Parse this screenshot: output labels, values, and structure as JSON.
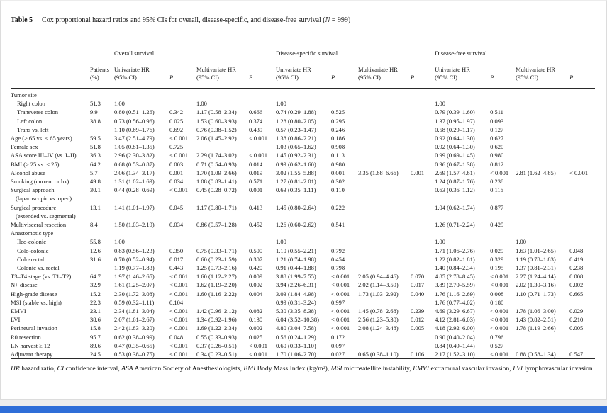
{
  "caption": {
    "label": "Table 5",
    "segments": [
      {
        "t": "Cox proportional hazard ratios and 95% CIs for overall, disease-specific, and disease-free survival (",
        "i": false
      },
      {
        "t": "N",
        "i": true
      },
      {
        "t": " = 999)",
        "i": false
      }
    ]
  },
  "table": {
    "header": {
      "patients": [
        "Patients",
        "(%)"
      ],
      "groups": [
        {
          "name": "Overall survival"
        },
        {
          "name": "Disease-specific survival"
        },
        {
          "name": "Disease-free survival"
        }
      ],
      "univariate": [
        "Univariate HR",
        "(95% CI)"
      ],
      "multivariate": [
        "Multivariate HR",
        "(95% CI)"
      ],
      "p": "P"
    },
    "rows": [
      {
        "label": "Tumor site",
        "indent": 0
      },
      {
        "label": "Right colon",
        "indent": 1,
        "cells": [
          "51.3",
          "1.00",
          "",
          "1.00",
          "",
          "1.00",
          "",
          "",
          "",
          "1.00",
          "",
          "",
          ""
        ]
      },
      {
        "label": "Transverse colon",
        "indent": 1,
        "cells": [
          "9.9",
          "0.80 (0.51–1.26)",
          "0.342",
          "1.17 (0.58–2.34)",
          "0.666",
          "0.74 (0.29–1.88)",
          "0.525",
          "",
          "",
          "0.79 (0.39–1.60)",
          "0.511",
          "",
          ""
        ]
      },
      {
        "label": "Left colon",
        "indent": 1,
        "cells": [
          "38.8",
          "0.73 (0.56–0.96)",
          "0.025",
          "1.53 (0.60–3.93)",
          "0.374",
          "1.28 (0.80–2.05)",
          "0.295",
          "",
          "",
          "1.37 (0.95–1.97)",
          "0.093",
          "",
          ""
        ]
      },
      {
        "label": "Trans vs. left",
        "indent": 1,
        "cells": [
          "",
          "1.10 (0.69–1.76)",
          "0.692",
          "0.76 (0.38–1.52)",
          "0.439",
          "0.57 (0.23–1.47)",
          "0.246",
          "",
          "",
          "0.58 (0.29–1.17)",
          "0.127",
          "",
          ""
        ]
      },
      {
        "label": "Age (≥ 65 vs. < 65 years)",
        "indent": 0,
        "cells": [
          "59.5",
          "3.47 (2.51–4.79)",
          "< 0.001",
          "2.06 (1.45–2.92)",
          "< 0.001",
          "1.38 (0.86–2.21)",
          "0.186",
          "",
          "",
          "0.92 (0.64–1.30)",
          "0.627",
          "",
          ""
        ]
      },
      {
        "label": "Female sex",
        "indent": 0,
        "cells": [
          "51.8",
          "1.05 (0.81–1.35)",
          "0.725",
          "",
          "",
          "1.03 (0.65–1.62)",
          "0.908",
          "",
          "",
          "0.92 (0.64–1.30)",
          "0.620",
          "",
          ""
        ]
      },
      {
        "label": "ASA score III–IV (vs. I–II)",
        "indent": 0,
        "cells": [
          "36.3",
          "2.96 (2.30–3.82)",
          "< 0.001",
          "2.29 (1.74–3.02)",
          "< 0.001",
          "1.45 (0.92–2.31)",
          "0.113",
          "",
          "",
          "0.99 (0.69–1.45)",
          "0.980",
          "",
          ""
        ]
      },
      {
        "label": "BMI (≥ 25 vs. < 25)",
        "indent": 0,
        "cells": [
          "64.2",
          "0.68 (0.53–0.87)",
          "0.003",
          "0.71 (0.54–0.93)",
          "0.014",
          "0.99 (0.62–1.60)",
          "0.980",
          "",
          "",
          "0.96 (0.67–1.38)",
          "0.812",
          "",
          ""
        ]
      },
      {
        "label": "Alcohol abuse",
        "indent": 0,
        "cells": [
          "5.7",
          "2.06 (1.34–3.17)",
          "0.001",
          "1.70 (1.09–2.66)",
          "0.019",
          "3.02 (1.55–5.88)",
          "0.001",
          "3.35 (1.68–6.66)",
          "0.001",
          "2.69 (1.57–4.61)",
          "< 0.001",
          "2.81 (1.62–4.85)",
          "< 0.001"
        ]
      },
      {
        "label": "Smoking (current or hx)",
        "indent": 0,
        "cells": [
          "49.8",
          "1.31 (1.02–1.69)",
          "0.034",
          "1.08 (0.83–1.41)",
          "0.571",
          "1.27 (0.81–2.01)",
          "0.302",
          "",
          "",
          "1.24 (0.87–1.76)",
          "0.238",
          "",
          ""
        ]
      },
      {
        "label": "Surgical approach",
        "label2": "(laparoscopic vs. open)",
        "indent": 0,
        "cells": [
          "30.1",
          "0.44 (0.28–0.69)",
          "< 0.001",
          "0.45 (0.28–0.72)",
          "0.001",
          "0.63 (0.35–1.11)",
          "0.110",
          "",
          "",
          "0.63 (0.36–1.12)",
          "0.116",
          "",
          ""
        ]
      },
      {
        "label": "Surgical procedure",
        "label2": "(extended vs. segmental)",
        "indent": 0,
        "cells": [
          "13.1",
          "1.41 (1.01–1.97)",
          "0.045",
          "1.17 (0.80–1.71)",
          "0.413",
          "1.45 (0.80–2.64)",
          "0.222",
          "",
          "",
          "1.04 (0.62–1.74)",
          "0.877",
          "",
          ""
        ]
      },
      {
        "label": "Multivisceral resection",
        "indent": 0,
        "cells": [
          "8.4",
          "1.50 (1.03–2.19)",
          "0.034",
          "0.86 (0.57–1.28)",
          "0.452",
          "1.26 (0.60–2.62)",
          "0.541",
          "",
          "",
          "1.26 (0.71–2.24)",
          "0.429",
          "",
          ""
        ]
      },
      {
        "label": "Anastomotic type",
        "indent": 0
      },
      {
        "label": "Ileo-colonic",
        "indent": 1,
        "cells": [
          "55.8",
          "1.00",
          "",
          "",
          "",
          "1.00",
          "",
          "",
          "",
          "1.00",
          "",
          "1.00",
          ""
        ]
      },
      {
        "label": "Colo-colonic",
        "indent": 1,
        "cells": [
          "12.6",
          "0.83 (0.56–1.23)",
          "0.350",
          "0.75 (0.33–1.71)",
          "0.500",
          "1.10 (0.55–2.21)",
          "0.792",
          "",
          "",
          "1.71 (1.06–2.76)",
          "0.029",
          "1.63 (1.01–2.65)",
          "0.048"
        ]
      },
      {
        "label": "Colo-rectal",
        "indent": 1,
        "cells": [
          "31.6",
          "0.70 (0.52–0.94)",
          "0.017",
          "0.60 (0.23–1.59)",
          "0.307",
          "1.21 (0.74–1.98)",
          "0.454",
          "",
          "",
          "1.22 (0.82–1.81)",
          "0.329",
          "1.19 (0.78–1.83)",
          "0.419"
        ]
      },
      {
        "label": "Colonic vs. rectal",
        "indent": 1,
        "cells": [
          "",
          "1.19 (0.77–1.83)",
          "0.443",
          "1.25 (0.73–2.16)",
          "0.420",
          "0.91 (0.44–1.88)",
          "0.798",
          "",
          "",
          "1.40 (0.84–2.34)",
          "0.195",
          "1.37 (0.81–2.31)",
          "0.238"
        ]
      },
      {
        "label": "T3–T4 stage (vs. T1–T2)",
        "indent": 0,
        "cells": [
          "64.7",
          "1.97 (1.46–2.65)",
          "< 0.001",
          "1.60 (1.12–2.27)",
          "0.009",
          "3.88 (1.99–7.55)",
          "< 0.001",
          "2.05 (0.94–4.46)",
          "0.070",
          "4.85 (2.78–8.45)",
          "< 0.001",
          "2.27 (1.24–4.14)",
          "0.008"
        ]
      },
      {
        "label": "N+ disease",
        "indent": 0,
        "cells": [
          "32.9",
          "1.61 (1.25–2.07)",
          "< 0.001",
          "1.62 (1.19–2.20)",
          "0.002",
          "3.94 (2.26–6.31)",
          "< 0.001",
          "2.02 (1.14–3.59)",
          "0.017",
          "3.89 (2.70–5.59)",
          "< 0.001",
          "2.02 (1.30–3.16)",
          "0.002"
        ]
      },
      {
        "label": "High-grade disease",
        "indent": 0,
        "cells": [
          "15.2",
          "2.30 (1.72–3.08)",
          "< 0.001",
          "1.60 (1.16–2.22)",
          "0.004",
          "3.03 (1.84–4.98)",
          "< 0.001",
          "1.73 (1.03–2.92)",
          "0.040",
          "1.76 (1.16–2.69)",
          "0.008",
          "1.10 (0.71–1.73)",
          "0.665"
        ]
      },
      {
        "label": "MSI (stable vs. high)",
        "indent": 0,
        "cells": [
          "22.3",
          "0.59 (0.32–1.11)",
          "0.104",
          "",
          "",
          "0.99 (0.31–3.24)",
          "0.997",
          "",
          "",
          "1.76 (0.77–4.02)",
          "0.180",
          "",
          ""
        ]
      },
      {
        "label": "EMVI",
        "indent": 0,
        "cells": [
          "23.1",
          "2.34 (1.81–3.04)",
          "< 0.001",
          "1.42 (0.96–2.12)",
          "0.082",
          "5.30 (3.35–8.38)",
          "< 0.001",
          "1.45 (0.78–2.68)",
          "0.239",
          "4.69 (3.29–6.67)",
          "< 0.001",
          "1.78 (1.06–3.00)",
          "0.029"
        ]
      },
      {
        "label": "LVI",
        "indent": 0,
        "cells": [
          "38.6",
          "2.07 (1.61–2.67)",
          "< 0.001",
          "1.34 (0.92–1.96)",
          "0.130",
          "6.04 (3.52–10.38)",
          "< 0.001",
          "2.56 (1.23–5.30)",
          "0.012",
          "4.12 (2.81–6.03)",
          "< 0.001",
          "1.43 (0.82–2.51)",
          "0.210"
        ]
      },
      {
        "label": "Perineural invasion",
        "indent": 0,
        "cells": [
          "15.8",
          "2.42 (1.83–3.20)",
          "< 0.001",
          "1.69 (1.22–2.34)",
          "0.002",
          "4.80 (3.04–7.58)",
          "< 0.001",
          "2.08 (1.24–3.48)",
          "0.005",
          "4.18 (2.92–6.00)",
          "< 0.001",
          "1.78 (1.19–2.66)",
          "0.005"
        ]
      },
      {
        "label": "R0 resection",
        "indent": 0,
        "cells": [
          "95.7",
          "0.62 (0.38–0.99)",
          "0.048",
          "0.55 (0.33–0.93)",
          "0.025",
          "0.56 (0.24–1.29)",
          "0.172",
          "",
          "",
          "0.90 (0.40–2.04)",
          "0.796",
          "",
          ""
        ]
      },
      {
        "label": "LN harvest ≥ 12",
        "indent": 0,
        "cells": [
          "89.6",
          "0.47 (0.35–0.65)",
          "< 0.001",
          "0.37 (0.26–0.51)",
          "< 0.001",
          "0.60 (0.33–1.10)",
          "0.097",
          "",
          "",
          "0.84 (0.49–1.44)",
          "0.527",
          "",
          ""
        ]
      },
      {
        "label": "Adjuvant therapy",
        "indent": 0,
        "cells": [
          "24.5",
          "0.53 (0.38–0.75)",
          "< 0.001",
          "0.34 (0.23–0.51)",
          "< 0.001",
          "1.70 (1.06–2.70)",
          "0.027",
          "0.65 (0.38–1.10)",
          "0.106",
          "2.17 (1.52–3.10)",
          "< 0.001",
          "0.88 (0.58–1.34)",
          "0.547"
        ]
      }
    ]
  },
  "footnote": {
    "segments": [
      {
        "t": "HR",
        "i": true
      },
      {
        "t": " hazard ratio, ",
        "i": false
      },
      {
        "t": "CI",
        "i": true
      },
      {
        "t": " confidence interval, ",
        "i": false
      },
      {
        "t": "ASA",
        "i": true
      },
      {
        "t": " American Society of Anesthesiologists, ",
        "i": false
      },
      {
        "t": "BMI",
        "i": true
      },
      {
        "t": " Body Mass Index (kg/m²), ",
        "i": false
      },
      {
        "t": "MSI",
        "i": true
      },
      {
        "t": " microsatellite instability, ",
        "i": false
      },
      {
        "t": "EMVI",
        "i": true
      },
      {
        "t": " extramural vascular invasion, ",
        "i": false
      },
      {
        "t": "LVI",
        "i": true
      },
      {
        "t": " lymphovascular invasion",
        "i": false
      }
    ]
  },
  "colors": {
    "bottom_bar": "#2e6ed8",
    "rule": "#2a2a2a",
    "text": "#141414"
  }
}
